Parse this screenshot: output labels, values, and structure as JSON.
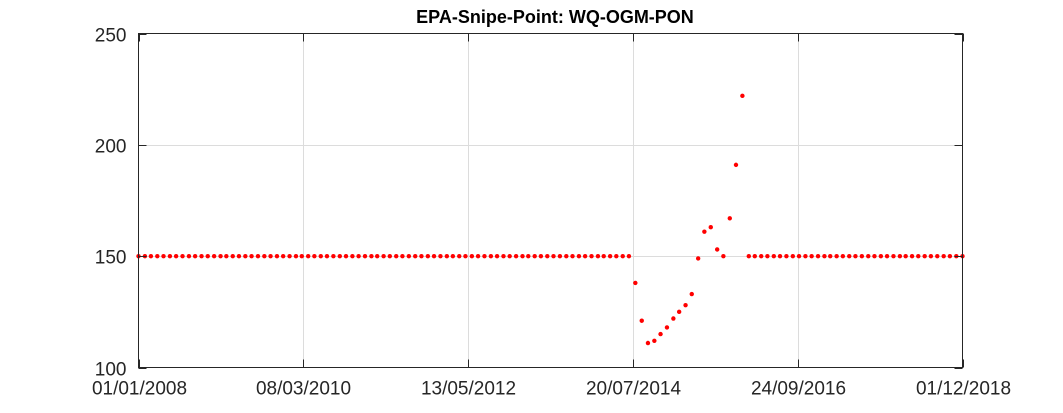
{
  "chart_data": {
    "type": "scatter",
    "title": "EPA-Snipe-Point: WQ-OGM-PON",
    "xlabel": "",
    "ylabel": "",
    "x_axis_type": "date",
    "xlim": [
      "2008-01-01",
      "2018-12-01"
    ],
    "ylim": [
      100,
      250
    ],
    "x_ticks": [
      "2008-01-01",
      "2010-03-08",
      "2012-05-13",
      "2014-07-20",
      "2016-09-24",
      "2018-12-01"
    ],
    "x_tick_labels": [
      "01/01/2008",
      "08/03/2010",
      "13/05/2012",
      "20/07/2014",
      "24/09/2016",
      "01/12/2018"
    ],
    "y_ticks": [
      100,
      150,
      200,
      250
    ],
    "y_tick_labels": [
      "100",
      "150",
      "200",
      "250"
    ],
    "grid": true,
    "marker_color": "#ff0000",
    "series": [
      {
        "x": [
          "2008-01-01",
          "2008-02-01",
          "2008-03-01",
          "2008-04-01",
          "2008-05-01",
          "2008-06-01",
          "2008-07-01",
          "2008-08-01",
          "2008-09-01",
          "2008-10-01",
          "2008-11-01",
          "2008-12-01",
          "2009-01-01",
          "2009-02-01",
          "2009-03-01",
          "2009-04-01",
          "2009-05-01",
          "2009-06-01",
          "2009-07-01",
          "2009-08-01",
          "2009-09-01",
          "2009-10-01",
          "2009-11-01",
          "2009-12-01",
          "2010-01-01",
          "2010-02-01",
          "2010-03-01",
          "2010-04-01",
          "2010-05-01",
          "2010-06-01",
          "2010-07-01",
          "2010-08-01",
          "2010-09-01",
          "2010-10-01",
          "2010-11-01",
          "2010-12-01",
          "2011-01-01",
          "2011-02-01",
          "2011-03-01",
          "2011-04-01",
          "2011-05-01",
          "2011-06-01",
          "2011-07-01",
          "2011-08-01",
          "2011-09-01",
          "2011-10-01",
          "2011-11-01",
          "2011-12-01",
          "2012-01-01",
          "2012-02-01",
          "2012-03-01",
          "2012-04-01",
          "2012-05-01",
          "2012-06-01",
          "2012-07-01",
          "2012-08-01",
          "2012-09-01",
          "2012-10-01",
          "2012-11-01",
          "2012-12-01",
          "2013-01-01",
          "2013-02-01",
          "2013-03-01",
          "2013-04-01",
          "2013-05-01",
          "2013-06-01",
          "2013-07-01",
          "2013-08-01",
          "2013-09-01",
          "2013-10-01",
          "2013-11-01",
          "2013-12-01",
          "2014-01-01",
          "2014-02-01",
          "2014-03-01",
          "2014-04-01",
          "2014-05-01",
          "2014-06-01",
          "2014-07-01",
          "2014-08-01",
          "2014-09-01",
          "2014-10-01",
          "2014-11-01",
          "2014-12-01",
          "2015-01-01",
          "2015-02-01",
          "2015-03-01",
          "2015-04-01",
          "2015-05-01",
          "2015-06-01",
          "2015-07-01",
          "2015-08-01",
          "2015-09-01",
          "2015-10-01",
          "2015-11-01",
          "2015-12-01",
          "2016-01-01",
          "2016-02-01",
          "2016-03-01",
          "2016-04-01",
          "2016-05-01",
          "2016-06-01",
          "2016-07-01",
          "2016-08-01",
          "2016-09-01",
          "2016-10-01",
          "2016-11-01",
          "2016-12-01",
          "2017-01-01",
          "2017-02-01",
          "2017-03-01",
          "2017-04-01",
          "2017-05-01",
          "2017-06-01",
          "2017-07-01",
          "2017-08-01",
          "2017-09-01",
          "2017-10-01",
          "2017-11-01",
          "2017-12-01",
          "2018-01-01",
          "2018-02-01",
          "2018-03-01",
          "2018-04-01",
          "2018-05-01",
          "2018-06-01",
          "2018-07-01",
          "2018-08-01",
          "2018-09-01",
          "2018-10-01",
          "2018-11-01",
          "2018-12-01"
        ],
        "y": [
          150,
          150,
          150,
          150,
          150,
          150,
          150,
          150,
          150,
          150,
          150,
          150,
          150,
          150,
          150,
          150,
          150,
          150,
          150,
          150,
          150,
          150,
          150,
          150,
          150,
          150,
          150,
          150,
          150,
          150,
          150,
          150,
          150,
          150,
          150,
          150,
          150,
          150,
          150,
          150,
          150,
          150,
          150,
          150,
          150,
          150,
          150,
          150,
          150,
          150,
          150,
          150,
          150,
          150,
          150,
          150,
          150,
          150,
          150,
          150,
          150,
          150,
          150,
          150,
          150,
          150,
          150,
          150,
          150,
          150,
          150,
          150,
          150,
          150,
          150,
          150,
          150,
          150,
          150,
          138,
          121,
          111,
          112,
          115,
          118,
          122,
          125,
          128,
          133,
          149,
          161,
          163,
          153,
          150,
          167,
          191,
          222,
          150,
          150,
          150,
          150,
          150,
          150,
          150,
          150,
          150,
          150,
          150,
          150,
          150,
          150,
          150,
          150,
          150,
          150,
          150,
          150,
          150,
          150,
          150,
          150,
          150,
          150,
          150,
          150,
          150,
          150,
          150,
          150,
          150,
          150,
          150
        ]
      }
    ]
  }
}
